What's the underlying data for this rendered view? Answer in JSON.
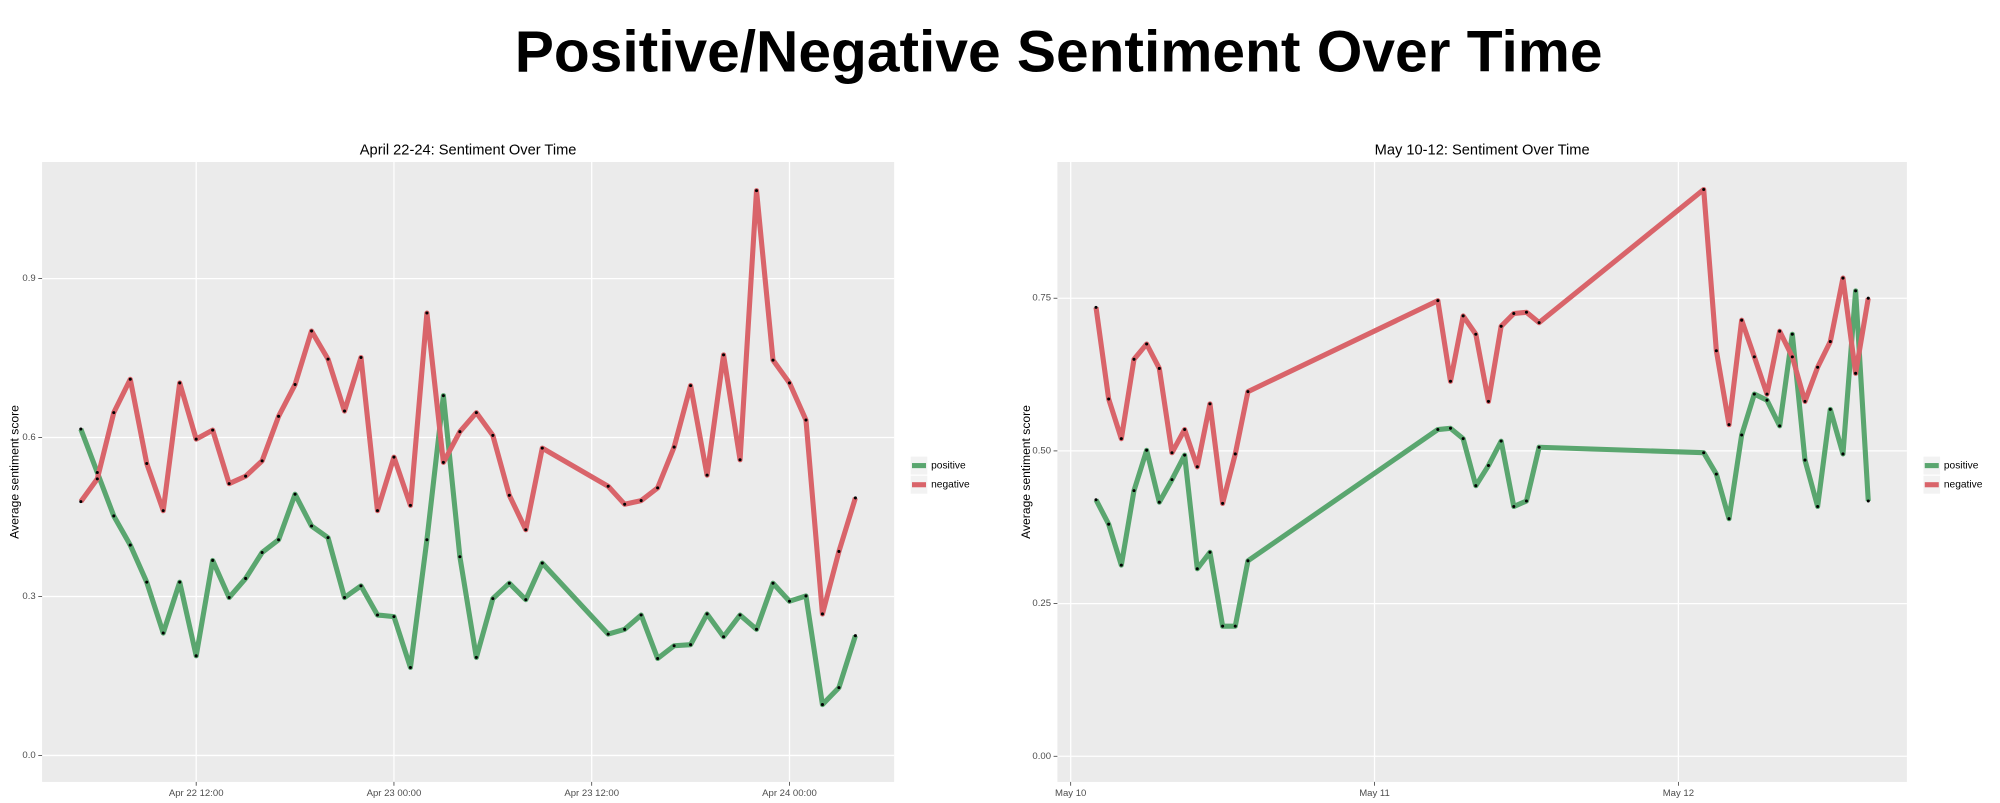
{
  "title": "Positive/Negative Sentiment Over Time",
  "chart_data": [
    {
      "type": "line",
      "title": "April 22-24: Sentiment Over Time",
      "ylabel": "Average sentiment score",
      "x": [
        "Apr 22 05:00",
        "Apr 22 06:00",
        "Apr 22 07:00",
        "Apr 22 08:00",
        "Apr 22 09:00",
        "Apr 22 10:00",
        "Apr 22 11:00",
        "Apr 22 12:00",
        "Apr 22 13:00",
        "Apr 22 14:00",
        "Apr 22 15:00",
        "Apr 22 16:00",
        "Apr 22 17:00",
        "Apr 22 18:00",
        "Apr 22 19:00",
        "Apr 22 20:00",
        "Apr 22 21:00",
        "Apr 22 22:00",
        "Apr 22 23:00",
        "Apr 23 00:00",
        "Apr 23 01:00",
        "Apr 23 02:00",
        "Apr 23 03:00",
        "Apr 23 04:00",
        "Apr 23 05:00",
        "Apr 23 06:00",
        "Apr 23 07:00",
        "Apr 23 08:00",
        "Apr 23 09:00",
        "Apr 23 13:00",
        "Apr 23 14:00",
        "Apr 23 15:00",
        "Apr 23 16:00",
        "Apr 23 17:00",
        "Apr 23 18:00",
        "Apr 23 19:00",
        "Apr 23 20:00",
        "Apr 23 21:00",
        "Apr 23 22:00",
        "Apr 23 23:00",
        "Apr 24 00:00",
        "Apr 24 01:00",
        "Apr 24 02:00",
        "Apr 24 03:00",
        "Apr 24 04:00"
      ],
      "series": [
        {
          "name": "positive",
          "color": "#5aa66f",
          "values": [
            0.616,
            0.534,
            0.452,
            0.397,
            0.327,
            0.231,
            0.327,
            0.188,
            0.368,
            0.298,
            0.334,
            0.383,
            0.407,
            0.493,
            0.433,
            0.411,
            0.298,
            0.32,
            0.265,
            0.262,
            0.166,
            0.407,
            0.679,
            0.375,
            0.185,
            0.296,
            0.325,
            0.294,
            0.363,
            0.229,
            0.238,
            0.265,
            0.183,
            0.207,
            0.209,
            0.267,
            0.224,
            0.265,
            0.238,
            0.325,
            0.291,
            0.301,
            0.096,
            0.128,
            0.226
          ]
        },
        {
          "name": "negative",
          "color": "#d9646a",
          "values": [
            0.479,
            0.522,
            0.647,
            0.71,
            0.551,
            0.462,
            0.703,
            0.597,
            0.614,
            0.513,
            0.527,
            0.556,
            0.64,
            0.7,
            0.801,
            0.748,
            0.65,
            0.751,
            0.462,
            0.563,
            0.472,
            0.835,
            0.553,
            0.611,
            0.647,
            0.604,
            0.491,
            0.426,
            0.58,
            0.508,
            0.474,
            0.481,
            0.505,
            0.582,
            0.698,
            0.529,
            0.756,
            0.558,
            1.066,
            0.746,
            0.703,
            0.633,
            0.267,
            0.385,
            0.486
          ]
        }
      ],
      "xlim": [
        "Apr 22 05:00",
        "Apr 24 04:00"
      ],
      "xticks": [
        "Apr 22 12:00",
        "Apr 23 00:00",
        "Apr 23 12:00",
        "Apr 24 00:00"
      ],
      "ylim": [
        -0.05,
        1.12
      ],
      "yticks": [
        {
          "value": 0,
          "label": "0.0"
        },
        0.3,
        0.6,
        0.9
      ],
      "grid": true,
      "legend": "right"
    },
    {
      "type": "line",
      "title": "May 10-12: Sentiment Over Time",
      "ylabel": "Average sentiment score",
      "x": [
        "May 10 02:00",
        "May 10 03:00",
        "May 10 04:00",
        "May 10 05:00",
        "May 10 06:00",
        "May 10 07:00",
        "May 10 08:00",
        "May 10 09:00",
        "May 10 10:00",
        "May 10 11:00",
        "May 10 12:00",
        "May 10 13:00",
        "May 10 14:00",
        "May 11 05:00",
        "May 11 06:00",
        "May 11 07:00",
        "May 11 08:00",
        "May 11 09:00",
        "May 11 10:00",
        "May 11 11:00",
        "May 11 12:00",
        "May 11 13:00",
        "May 12 02:00",
        "May 12 03:00",
        "May 12 04:00",
        "May 12 05:00",
        "May 12 06:00",
        "May 12 07:00",
        "May 12 08:00",
        "May 12 09:00",
        "May 12 10:00",
        "May 12 11:00",
        "May 12 12:00",
        "May 12 13:00",
        "May 12 14:00",
        "May 12 15:00"
      ],
      "series": [
        {
          "name": "positive",
          "color": "#5aa66f",
          "values": [
            0.42,
            0.38,
            0.313,
            0.435,
            0.501,
            0.416,
            0.453,
            0.493,
            0.307,
            0.334,
            0.213,
            0.213,
            0.32,
            0.535,
            0.537,
            0.52,
            0.443,
            0.476,
            0.516,
            0.409,
            0.418,
            0.506,
            0.497,
            0.462,
            0.389,
            0.526,
            0.593,
            0.583,
            0.541,
            0.691,
            0.485,
            0.409,
            0.568,
            0.495,
            0.762,
            0.418
          ]
        },
        {
          "name": "negative",
          "color": "#d9646a",
          "values": [
            0.735,
            0.585,
            0.52,
            0.65,
            0.675,
            0.635,
            0.497,
            0.535,
            0.474,
            0.577,
            0.414,
            0.495,
            0.597,
            0.746,
            0.614,
            0.721,
            0.691,
            0.581,
            0.704,
            0.725,
            0.727,
            0.71,
            0.928,
            0.664,
            0.543,
            0.714,
            0.654,
            0.593,
            0.696,
            0.654,
            0.581,
            0.637,
            0.679,
            0.783,
            0.627,
            0.75
          ]
        }
      ],
      "xlim": [
        "May 10 02:00",
        "May 12 15:00"
      ],
      "xticks": [
        "May 10",
        "May 11",
        "May 12"
      ],
      "ylim": [
        -0.042,
        0.973
      ],
      "yticks": [
        {
          "value": 0,
          "label": "0.00"
        },
        0.25,
        {
          "value": 0.5,
          "label": "0.50"
        },
        0.75
      ],
      "grid": true,
      "legend": "right"
    }
  ]
}
